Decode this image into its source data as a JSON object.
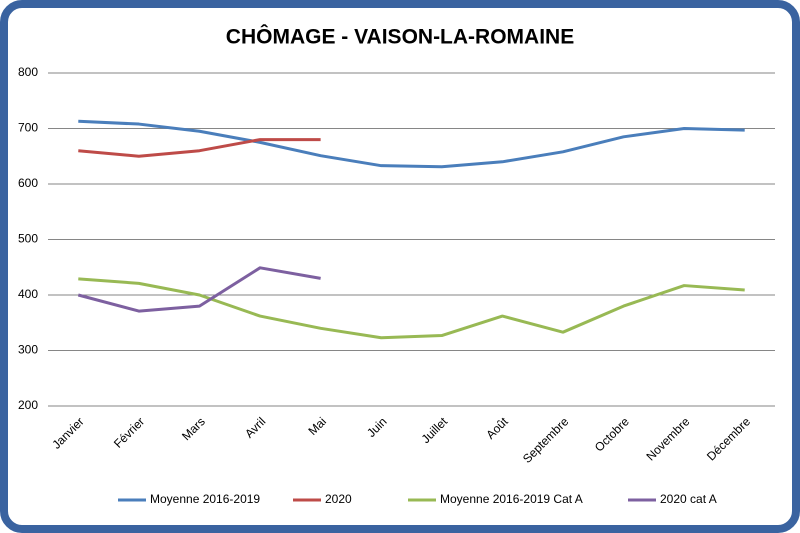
{
  "chart_data": {
    "type": "line",
    "title": "CHÔMAGE - VAISON-LA-ROMAINE",
    "categories": [
      "Janvier",
      "Février",
      "Mars",
      "Avril",
      "Mai",
      "Juin",
      "Juillet",
      "Août",
      "Septembre",
      "Octobre",
      "Novembre",
      "Décembre"
    ],
    "series": [
      {
        "name": "Moyenne 2016-2019",
        "color": "#4a7ebb",
        "values": [
          713,
          708,
          695,
          675,
          651,
          633,
          631,
          640,
          658,
          685,
          700,
          697
        ]
      },
      {
        "name": "2020",
        "color": "#be4b48",
        "values": [
          660,
          650,
          660,
          680,
          680,
          null,
          null,
          null,
          null,
          null,
          null,
          null
        ]
      },
      {
        "name": "Moyenne 2016-2019 Cat A",
        "color": "#98b954",
        "values": [
          429,
          421,
          400,
          362,
          340,
          323,
          327,
          362,
          333,
          380,
          417,
          409
        ]
      },
      {
        "name": "2020 cat A",
        "color": "#7d60a0",
        "values": [
          400,
          371,
          380,
          449,
          430,
          null,
          null,
          null,
          null,
          null,
          null,
          null
        ]
      }
    ],
    "ylim": [
      200,
      800
    ],
    "yticks": [
      200,
      300,
      400,
      500,
      600,
      700,
      800
    ],
    "grid": true,
    "legend": "bottom"
  }
}
